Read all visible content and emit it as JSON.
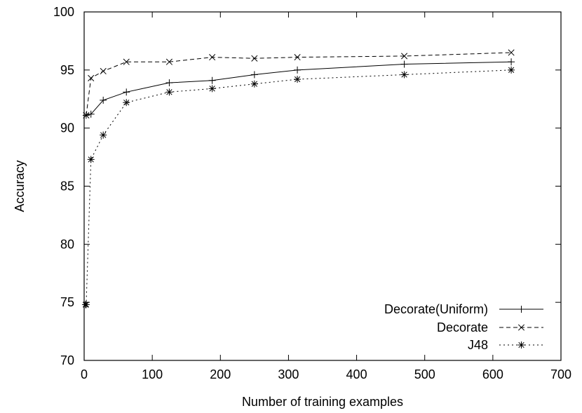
{
  "chart_data": {
    "type": "line",
    "title": "",
    "xlabel": "Number of training examples",
    "ylabel": "Accuracy",
    "xlim": [
      0,
      700
    ],
    "ylim": [
      70,
      100
    ],
    "xticks": [
      "0",
      "100",
      "200",
      "300",
      "400",
      "500",
      "600",
      "700"
    ],
    "yticks": [
      "70",
      "75",
      "80",
      "85",
      "90",
      "95",
      "100"
    ],
    "grid": false,
    "legend_position": "bottom-right",
    "series": [
      {
        "name": "Decorate(Uniform)",
        "line_style": "solid",
        "marker": "plus",
        "color": "#000000",
        "x": [
          3,
          10,
          28,
          62,
          125,
          188,
          250,
          313,
          470,
          627
        ],
        "y": [
          91.1,
          91.2,
          92.4,
          93.1,
          93.9,
          94.1,
          94.6,
          95.0,
          95.5,
          95.7
        ]
      },
      {
        "name": "Decorate",
        "line_style": "dashed",
        "marker": "x",
        "color": "#000000",
        "x": [
          3,
          10,
          28,
          62,
          125,
          188,
          250,
          313,
          470,
          627
        ],
        "y": [
          91.1,
          94.3,
          94.9,
          95.7,
          95.7,
          96.1,
          96.0,
          96.1,
          96.2,
          96.5
        ]
      },
      {
        "name": "J48",
        "line_style": "dotted",
        "marker": "star",
        "color": "#000000",
        "x": [
          2,
          3,
          10,
          28,
          62,
          125,
          188,
          250,
          313,
          470,
          627
        ],
        "y": [
          74.8,
          74.8,
          87.3,
          89.4,
          92.2,
          93.1,
          93.4,
          93.8,
          94.2,
          94.6,
          95.0
        ]
      }
    ]
  }
}
